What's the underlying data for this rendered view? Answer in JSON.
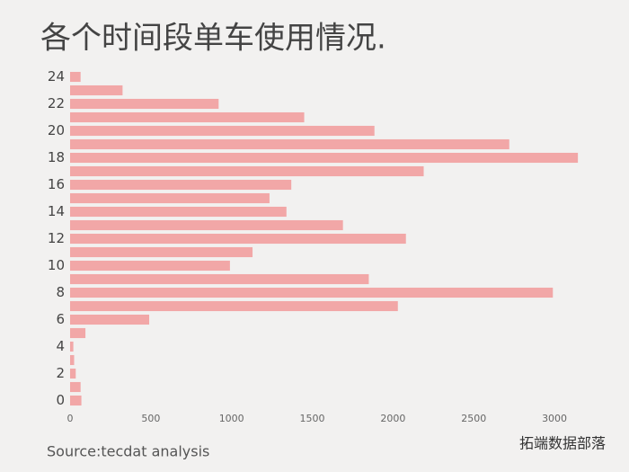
{
  "chart_data": {
    "type": "barh",
    "title": "各个时间段单车使用情况.",
    "source": "Source:tecdat analysis",
    "watermark": "拓端数据部落",
    "categories": [
      0,
      null,
      2,
      null,
      4,
      null,
      6,
      null,
      8,
      null,
      10,
      null,
      12,
      null,
      14,
      null,
      16,
      null,
      18,
      null,
      20,
      null,
      22,
      null,
      24
    ],
    "values": [
      70,
      65,
      35,
      25,
      20,
      95,
      490,
      2030,
      2990,
      1850,
      990,
      1130,
      2080,
      1690,
      1340,
      1235,
      1370,
      2190,
      3145,
      2720,
      1885,
      1450,
      920,
      325,
      65
    ],
    "color": "#f2a7a7",
    "xlim": [
      0,
      3200
    ],
    "xticks": [
      0,
      500,
      1000,
      1500,
      2000,
      2500,
      3000
    ],
    "grid": false
  }
}
